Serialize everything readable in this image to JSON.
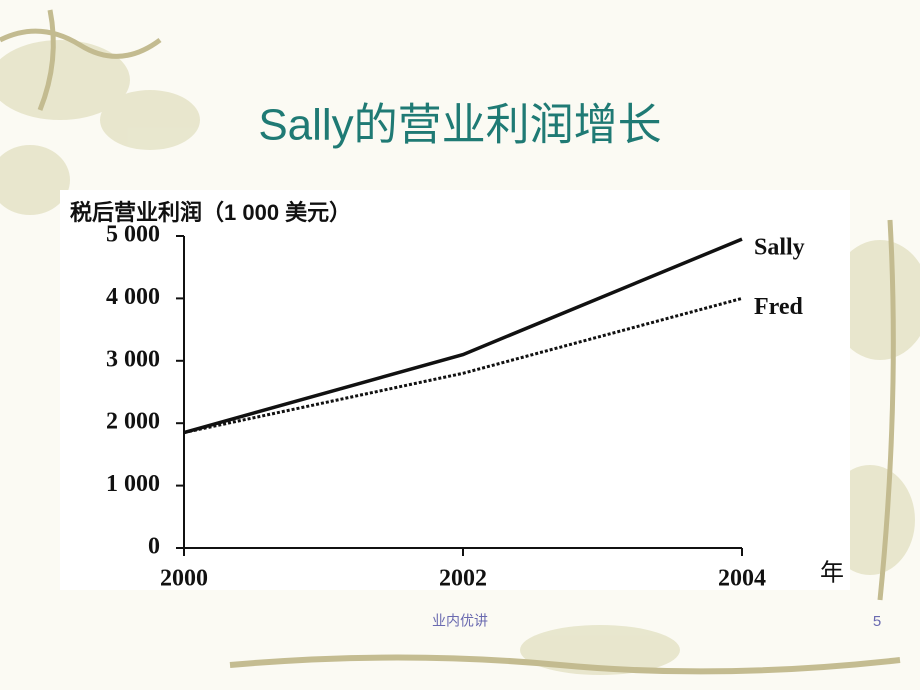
{
  "chart_data": {
    "type": "line",
    "title": "Sally的营业利润增长",
    "y_label": "税后营业利润（1 000 美元）",
    "x_label": "年",
    "x": [
      2000,
      2002,
      2004
    ],
    "series": [
      {
        "name": "Sally",
        "color": "#111111",
        "style": "solid",
        "values": [
          1850,
          3100,
          4950
        ]
      },
      {
        "name": "Fred",
        "color": "#111111",
        "style": "dotted",
        "values": [
          1850,
          2800,
          4000
        ]
      }
    ],
    "xlim": [
      2000,
      2004
    ],
    "xticks": [
      2000,
      2002,
      2004
    ],
    "ylim": [
      0,
      5000
    ],
    "yticks": [
      0,
      {
        "value": 1000,
        "label": "1 000"
      },
      {
        "value": 2000,
        "label": "2 000"
      },
      {
        "value": 3000,
        "label": "3 000"
      },
      {
        "value": 4000,
        "label": "4 000"
      },
      {
        "value": 5000,
        "label": "5 000"
      }
    ]
  },
  "footer": "业内优讲",
  "page_number": "5"
}
